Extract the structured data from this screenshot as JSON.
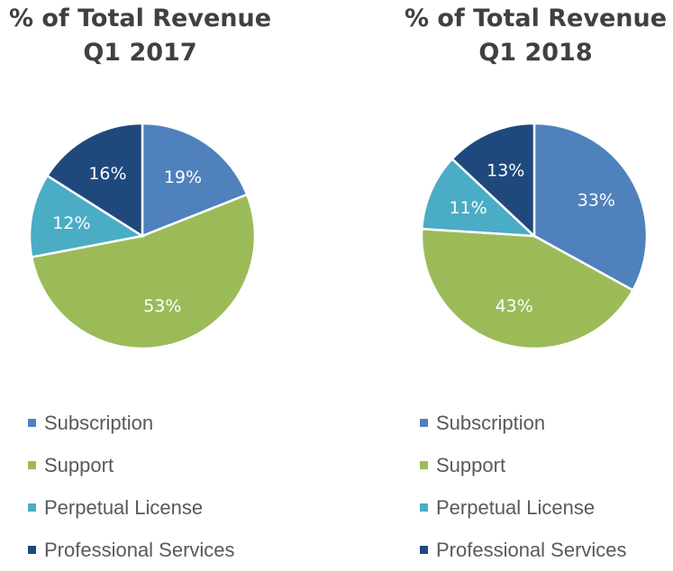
{
  "chart_data": [
    {
      "type": "pie",
      "title": [
        "% of Total Revenue",
        "Q1 2017"
      ],
      "categories": [
        "Subscription",
        "Support",
        "Perpetual License",
        "Professional Services"
      ],
      "values": [
        19,
        53,
        12,
        16
      ],
      "labels": [
        "19%",
        "53%",
        "12%",
        "16%"
      ],
      "colors": [
        "#4f81bd",
        "#9bbb59",
        "#4bacc6",
        "#1f497d"
      ],
      "legend": "bottom"
    },
    {
      "type": "pie",
      "title": [
        "% of Total Revenue",
        "Q1 2018"
      ],
      "categories": [
        "Subscription",
        "Support",
        "Perpetual License",
        "Professional Services"
      ],
      "values": [
        33,
        43,
        11,
        13
      ],
      "labels": [
        "33%",
        "43%",
        "11%",
        "13%"
      ],
      "colors": [
        "#4f81bd",
        "#9bbb59",
        "#4bacc6",
        "#1f497d"
      ],
      "legend": "bottom"
    }
  ]
}
